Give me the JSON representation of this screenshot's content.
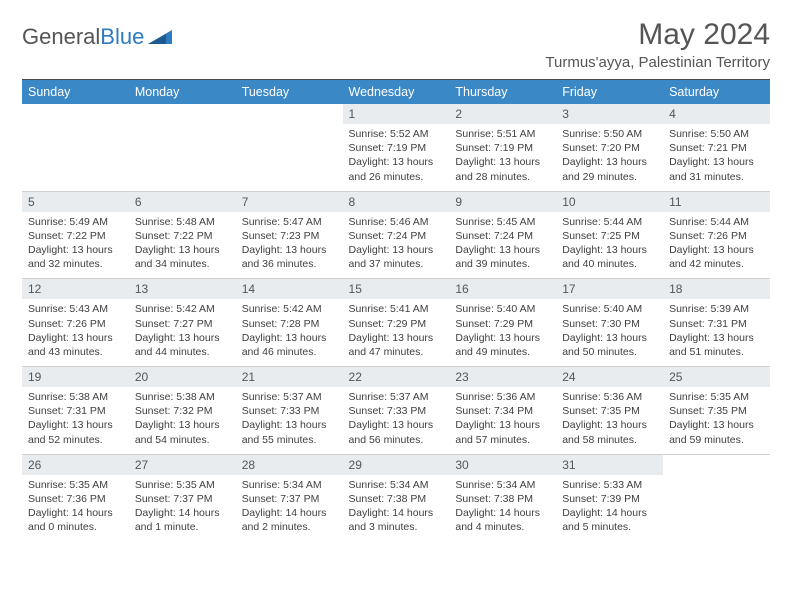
{
  "logo": {
    "text1": "General",
    "text2": "Blue"
  },
  "title": "May 2024",
  "location": "Turmus'ayya, Palestinian Territory",
  "header_bg": "#3b88c7",
  "daynum_bg": "#e9ecef",
  "weekdays": [
    "Sunday",
    "Monday",
    "Tuesday",
    "Wednesday",
    "Thursday",
    "Friday",
    "Saturday"
  ],
  "weeks": [
    [
      null,
      null,
      null,
      {
        "d": "1",
        "sr": "5:52 AM",
        "ss": "7:19 PM",
        "dl": "13 hours and 26 minutes."
      },
      {
        "d": "2",
        "sr": "5:51 AM",
        "ss": "7:19 PM",
        "dl": "13 hours and 28 minutes."
      },
      {
        "d": "3",
        "sr": "5:50 AM",
        "ss": "7:20 PM",
        "dl": "13 hours and 29 minutes."
      },
      {
        "d": "4",
        "sr": "5:50 AM",
        "ss": "7:21 PM",
        "dl": "13 hours and 31 minutes."
      }
    ],
    [
      {
        "d": "5",
        "sr": "5:49 AM",
        "ss": "7:22 PM",
        "dl": "13 hours and 32 minutes."
      },
      {
        "d": "6",
        "sr": "5:48 AM",
        "ss": "7:22 PM",
        "dl": "13 hours and 34 minutes."
      },
      {
        "d": "7",
        "sr": "5:47 AM",
        "ss": "7:23 PM",
        "dl": "13 hours and 36 minutes."
      },
      {
        "d": "8",
        "sr": "5:46 AM",
        "ss": "7:24 PM",
        "dl": "13 hours and 37 minutes."
      },
      {
        "d": "9",
        "sr": "5:45 AM",
        "ss": "7:24 PM",
        "dl": "13 hours and 39 minutes."
      },
      {
        "d": "10",
        "sr": "5:44 AM",
        "ss": "7:25 PM",
        "dl": "13 hours and 40 minutes."
      },
      {
        "d": "11",
        "sr": "5:44 AM",
        "ss": "7:26 PM",
        "dl": "13 hours and 42 minutes."
      }
    ],
    [
      {
        "d": "12",
        "sr": "5:43 AM",
        "ss": "7:26 PM",
        "dl": "13 hours and 43 minutes."
      },
      {
        "d": "13",
        "sr": "5:42 AM",
        "ss": "7:27 PM",
        "dl": "13 hours and 44 minutes."
      },
      {
        "d": "14",
        "sr": "5:42 AM",
        "ss": "7:28 PM",
        "dl": "13 hours and 46 minutes."
      },
      {
        "d": "15",
        "sr": "5:41 AM",
        "ss": "7:29 PM",
        "dl": "13 hours and 47 minutes."
      },
      {
        "d": "16",
        "sr": "5:40 AM",
        "ss": "7:29 PM",
        "dl": "13 hours and 49 minutes."
      },
      {
        "d": "17",
        "sr": "5:40 AM",
        "ss": "7:30 PM",
        "dl": "13 hours and 50 minutes."
      },
      {
        "d": "18",
        "sr": "5:39 AM",
        "ss": "7:31 PM",
        "dl": "13 hours and 51 minutes."
      }
    ],
    [
      {
        "d": "19",
        "sr": "5:38 AM",
        "ss": "7:31 PM",
        "dl": "13 hours and 52 minutes."
      },
      {
        "d": "20",
        "sr": "5:38 AM",
        "ss": "7:32 PM",
        "dl": "13 hours and 54 minutes."
      },
      {
        "d": "21",
        "sr": "5:37 AM",
        "ss": "7:33 PM",
        "dl": "13 hours and 55 minutes."
      },
      {
        "d": "22",
        "sr": "5:37 AM",
        "ss": "7:33 PM",
        "dl": "13 hours and 56 minutes."
      },
      {
        "d": "23",
        "sr": "5:36 AM",
        "ss": "7:34 PM",
        "dl": "13 hours and 57 minutes."
      },
      {
        "d": "24",
        "sr": "5:36 AM",
        "ss": "7:35 PM",
        "dl": "13 hours and 58 minutes."
      },
      {
        "d": "25",
        "sr": "5:35 AM",
        "ss": "7:35 PM",
        "dl": "13 hours and 59 minutes."
      }
    ],
    [
      {
        "d": "26",
        "sr": "5:35 AM",
        "ss": "7:36 PM",
        "dl": "14 hours and 0 minutes."
      },
      {
        "d": "27",
        "sr": "5:35 AM",
        "ss": "7:37 PM",
        "dl": "14 hours and 1 minute."
      },
      {
        "d": "28",
        "sr": "5:34 AM",
        "ss": "7:37 PM",
        "dl": "14 hours and 2 minutes."
      },
      {
        "d": "29",
        "sr": "5:34 AM",
        "ss": "7:38 PM",
        "dl": "14 hours and 3 minutes."
      },
      {
        "d": "30",
        "sr": "5:34 AM",
        "ss": "7:38 PM",
        "dl": "14 hours and 4 minutes."
      },
      {
        "d": "31",
        "sr": "5:33 AM",
        "ss": "7:39 PM",
        "dl": "14 hours and 5 minutes."
      },
      null
    ]
  ],
  "labels": {
    "sunrise": "Sunrise:",
    "sunset": "Sunset:",
    "daylight": "Daylight:"
  }
}
